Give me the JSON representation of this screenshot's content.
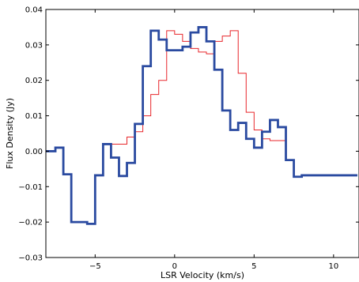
{
  "chart_data": {
    "type": "line",
    "xlabel": "LSR Velocity (km/s)",
    "ylabel": "Flux Density (Jy)",
    "xlim": [
      -8.1,
      11.6
    ],
    "ylim": [
      -0.03,
      0.04
    ],
    "xticks": [
      -5,
      0,
      5,
      10
    ],
    "xtick_labels": [
      "−5",
      "0",
      "5",
      "10"
    ],
    "yticks": [
      -0.03,
      -0.02,
      -0.01,
      0.0,
      0.01,
      0.02,
      0.03,
      0.04
    ],
    "ytick_labels": [
      "−0.03",
      "−0.02",
      "−0.01",
      "0.00",
      "0.01",
      "0.02",
      "0.03",
      "0.04"
    ],
    "grid": false,
    "style": "steps",
    "series": [
      {
        "color": "#e8262b",
        "line_width": "thin",
        "x": [
          -3.75,
          -3.25,
          -2.75,
          -2.25,
          -1.75,
          -1.25,
          -0.75,
          -0.25,
          0.25,
          0.75,
          1.25,
          1.75,
          2.25,
          2.75,
          3.25,
          3.75,
          4.25,
          4.75,
          5.25,
          5.75,
          6.25,
          6.75
        ],
        "y": [
          0.002,
          0.002,
          0.004,
          0.0055,
          0.01,
          0.016,
          0.02,
          0.034,
          0.033,
          0.031,
          0.029,
          0.028,
          0.0275,
          0.031,
          0.0325,
          0.034,
          0.022,
          0.011,
          0.006,
          0.0035,
          0.003,
          0.003
        ]
      },
      {
        "color": "#2a4aa0",
        "line_width": "thick",
        "x": [
          -8.25,
          -7.75,
          -7.25,
          -6.75,
          -6.25,
          -5.75,
          -5.25,
          -4.75,
          -4.25,
          -3.75,
          -3.25,
          -2.75,
          -2.25,
          -1.75,
          -1.25,
          -0.75,
          -0.25,
          0.25,
          0.75,
          1.25,
          1.75,
          2.25,
          2.75,
          3.25,
          3.75,
          4.25,
          4.75,
          5.25,
          5.75,
          6.25,
          6.75,
          7.25,
          7.75,
          8.25,
          8.75,
          9.25,
          9.75,
          10.25,
          10.75,
          11.25
        ],
        "y": [
          0.0,
          0.0,
          0.001,
          -0.0065,
          -0.02,
          -0.02,
          -0.0205,
          -0.0068,
          0.002,
          -0.0018,
          -0.007,
          -0.0033,
          0.0077,
          0.024,
          0.034,
          0.0315,
          0.0285,
          0.0285,
          0.0295,
          0.0335,
          0.035,
          0.031,
          0.023,
          0.0115,
          0.006,
          0.008,
          0.0035,
          0.001,
          0.0055,
          0.0088,
          0.0068,
          -0.0025,
          -0.0072,
          -0.0068,
          -0.0068,
          -0.0068,
          -0.0068,
          -0.0068,
          -0.0068,
          -0.0068
        ]
      }
    ]
  }
}
